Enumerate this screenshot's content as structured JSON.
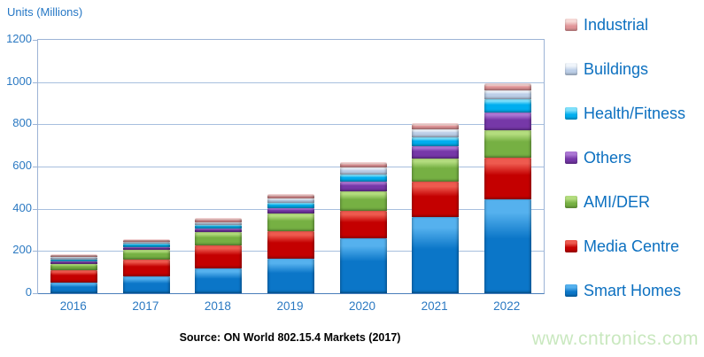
{
  "title": "Units (Millions)",
  "source": "Source: ON World 802.15.4 Markets (2017)",
  "watermark": "www.cntronics.com",
  "colors": {
    "axis_text": "#2B79C2",
    "grid_line": "#A7BFDE",
    "plot_border": "#9DB4D6",
    "axis_baseline": "#4A7EBB",
    "legend_text": "#0C70C0",
    "source_text": "#000000",
    "watermark_text": "#C9E8BF"
  },
  "chart_data": {
    "type": "bar",
    "stacked": true,
    "title": "Units (Millions)",
    "ylabel": "Units (Millions)",
    "xlabel": "",
    "ylim": [
      0,
      1200
    ],
    "y_ticks": [
      0,
      200,
      400,
      600,
      800,
      1000,
      1200
    ],
    "grid": true,
    "legend_position": "right",
    "categories": [
      "2016",
      "2017",
      "2018",
      "2019",
      "2020",
      "2021",
      "2022"
    ],
    "series": [
      {
        "name": "Smart Homes",
        "color": "#0B76C8",
        "highlight": "#55B1EE",
        "values": [
          50,
          80,
          118,
          165,
          260,
          360,
          445
        ]
      },
      {
        "name": "Media Centre",
        "color": "#C40000",
        "highlight": "#EE5A4F",
        "values": [
          60,
          80,
          107,
          130,
          132,
          167,
          196
        ]
      },
      {
        "name": "AMI/DER",
        "color": "#76B043",
        "highlight": "#B3DC7E",
        "values": [
          30,
          45,
          63,
          82,
          90,
          110,
          132
        ]
      },
      {
        "name": "Others",
        "color": "#7638A8",
        "highlight": "#AC77D4",
        "values": [
          10,
          15,
          19,
          26,
          47,
          61,
          82
        ]
      },
      {
        "name": "Health/Fitness",
        "color": "#00AEEF",
        "highlight": "#7FE0FB",
        "values": [
          11,
          13,
          17,
          24,
          35,
          41,
          62
        ]
      },
      {
        "name": "Buildings",
        "color": "#BDCFE8",
        "highlight": "#F0F5FB",
        "values": [
          10,
          10,
          13,
          20,
          30,
          36,
          46
        ]
      },
      {
        "name": "Industrial",
        "color": "#E19598",
        "highlight": "#F6D9D6",
        "values": [
          10,
          10,
          14,
          18,
          22,
          25,
          28
        ]
      }
    ],
    "stack_order_bottom_to_top": [
      "Smart Homes",
      "Media Centre",
      "AMI/DER",
      "Others",
      "Health/Fitness",
      "Buildings",
      "Industrial"
    ],
    "legend_order_top_to_bottom": [
      "Industrial",
      "Buildings",
      "Health/Fitness",
      "Others",
      "AMI/DER",
      "Media Centre",
      "Smart Homes"
    ]
  }
}
